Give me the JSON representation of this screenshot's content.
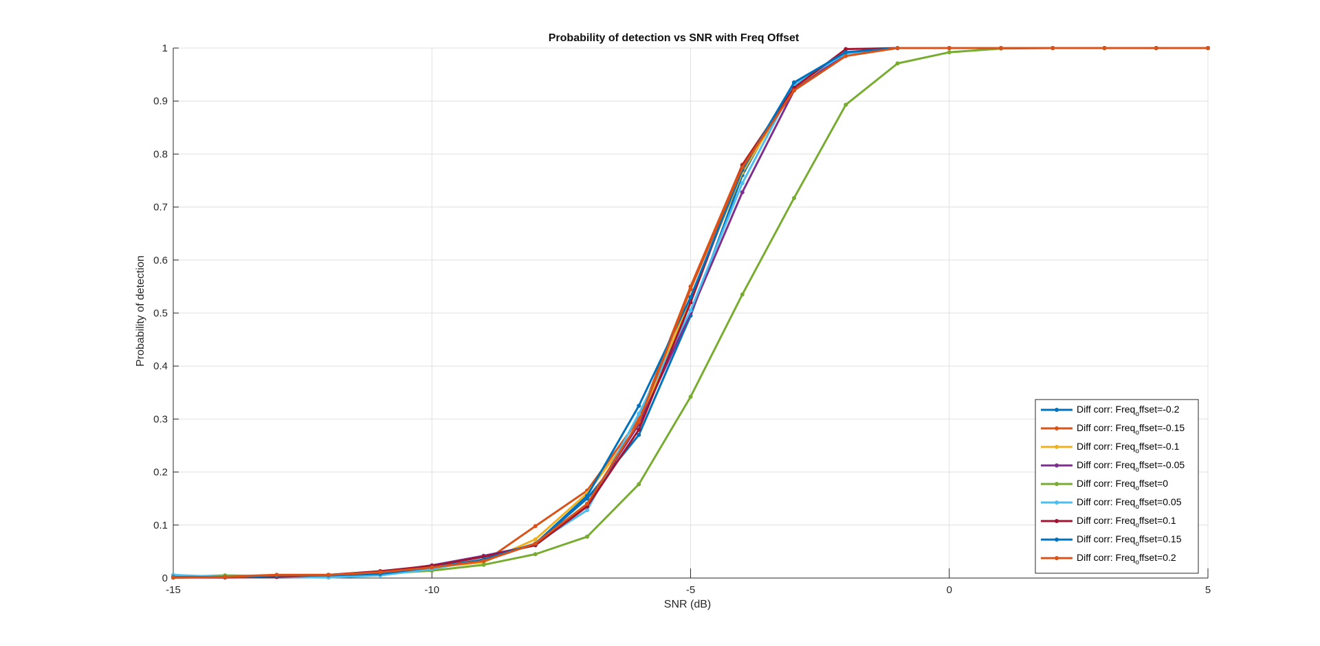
{
  "chart_data": {
    "type": "line",
    "title": "Probability of detection vs SNR with Freq Offset",
    "xlabel": "SNR (dB)",
    "ylabel": "Probability of detection",
    "xlim": [
      -15,
      5
    ],
    "ylim": [
      0,
      1
    ],
    "xticks": [
      -15,
      -10,
      -5,
      0,
      5
    ],
    "xtick_labels": [
      "-15",
      "-10",
      "-5",
      "0",
      "5"
    ],
    "yticks": [
      0,
      0.1,
      0.2,
      0.3,
      0.4,
      0.5,
      0.6,
      0.7,
      0.8,
      0.9,
      1
    ],
    "ytick_labels": [
      "0",
      "0.1",
      "0.2",
      "0.3",
      "0.4",
      "0.5",
      "0.6",
      "0.7",
      "0.8",
      "0.9",
      "1"
    ],
    "grid": true,
    "legend_position": "bottom-right",
    "x": [
      -15,
      -14,
      -13,
      -12,
      -11,
      -10,
      -9,
      -8,
      -7,
      -6,
      -5,
      -4,
      -3,
      -2,
      -1,
      0,
      1,
      2,
      3,
      4,
      5
    ],
    "series": [
      {
        "label": {
          "prefix": "Diff corr: Freq",
          "sub": "o",
          "suffix": "ffset=-0.2"
        },
        "color": "#0072BD",
        "values": [
          0.001,
          0.002,
          0.003,
          0.005,
          0.008,
          0.018,
          0.035,
          0.065,
          0.15,
          0.27,
          0.495,
          0.76,
          0.935,
          0.992,
          1,
          1,
          1,
          1,
          1,
          1,
          1
        ]
      },
      {
        "label": {
          "prefix": "Diff corr: Freq",
          "sub": "o",
          "suffix": "ffset=-0.15"
        },
        "color": "#D95319",
        "values": [
          0.001,
          0.003,
          0.006,
          0.006,
          0.01,
          0.02,
          0.03,
          0.098,
          0.165,
          0.3,
          0.55,
          0.78,
          0.925,
          0.99,
          1,
          1,
          1,
          1,
          1,
          1,
          1
        ]
      },
      {
        "label": {
          "prefix": "Diff corr: Freq",
          "sub": "o",
          "suffix": "ffset=-0.1"
        },
        "color": "#EDB120",
        "values": [
          0.001,
          0.003,
          0.004,
          0.005,
          0.009,
          0.02,
          0.03,
          0.073,
          0.16,
          0.29,
          0.53,
          0.765,
          0.925,
          0.99,
          1,
          1,
          1,
          1,
          1,
          1,
          1
        ]
      },
      {
        "label": {
          "prefix": "Diff corr: Freq",
          "sub": "o",
          "suffix": "ffset=-0.05"
        },
        "color": "#7E2F8E",
        "values": [
          0.001,
          0.002,
          0.003,
          0.006,
          0.011,
          0.024,
          0.042,
          0.062,
          0.14,
          0.29,
          0.5,
          0.728,
          0.92,
          0.99,
          1,
          1,
          1,
          1,
          1,
          1,
          1
        ]
      },
      {
        "label": {
          "prefix": "Diff corr: Freq",
          "sub": "o",
          "suffix": "ffset=0"
        },
        "color": "#77AC30",
        "values": [
          0.002,
          0.005,
          0.004,
          0.006,
          0.008,
          0.014,
          0.025,
          0.045,
          0.078,
          0.177,
          0.342,
          0.535,
          0.717,
          0.893,
          0.971,
          0.992,
          0.999,
          1,
          1,
          1,
          1
        ]
      },
      {
        "label": {
          "prefix": "Diff corr: Freq",
          "sub": "o",
          "suffix": "ffset=0.05"
        },
        "color": "#4DBEEE",
        "values": [
          0.006,
          0.002,
          0.002,
          0.001,
          0.005,
          0.017,
          0.035,
          0.065,
          0.128,
          0.31,
          0.505,
          0.745,
          0.93,
          0.99,
          1,
          1,
          1,
          1,
          1,
          1,
          1
        ]
      },
      {
        "label": {
          "prefix": "Diff corr: Freq",
          "sub": "o",
          "suffix": "ffset=0.1"
        },
        "color": "#A2142F",
        "values": [
          0.001,
          0.001,
          0.002,
          0.006,
          0.013,
          0.023,
          0.04,
          0.062,
          0.135,
          0.28,
          0.52,
          0.778,
          0.925,
          0.998,
          1,
          1,
          1,
          1,
          1,
          1,
          1
        ]
      },
      {
        "label": {
          "prefix": "Diff corr: Freq",
          "sub": "o",
          "suffix": "ffset=0.15"
        },
        "color": "#0072BD",
        "values": [
          0.002,
          0.002,
          0.004,
          0.005,
          0.008,
          0.02,
          0.035,
          0.065,
          0.155,
          0.325,
          0.53,
          0.77,
          0.935,
          0.992,
          1,
          1,
          1,
          1,
          1,
          1,
          1
        ]
      },
      {
        "label": {
          "prefix": "Diff corr: Freq",
          "sub": "o",
          "suffix": "ffset=0.2"
        },
        "color": "#D95319",
        "values": [
          0.001,
          0.002,
          0.006,
          0.006,
          0.011,
          0.02,
          0.032,
          0.065,
          0.14,
          0.295,
          0.545,
          0.775,
          0.92,
          0.985,
          1,
          1,
          1,
          1,
          1,
          1,
          1
        ]
      }
    ]
  }
}
